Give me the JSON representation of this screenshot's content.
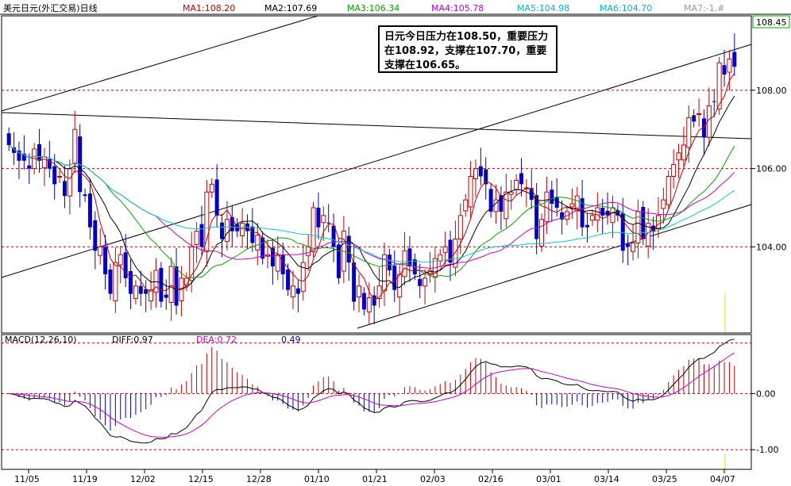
{
  "title": "美元日元(外汇交易)日线",
  "ma_labels": [
    {
      "text": "MA1:108.20",
      "color": "#cc0000"
    },
    {
      "text": "MA2:107.69",
      "color": "#000000"
    },
    {
      "text": "MA3:106.34",
      "color": "#00aa00"
    },
    {
      "text": "MA4:105.78",
      "color": "#cc00cc"
    },
    {
      "text": "MA5:104.98",
      "color": "#00cccc"
    },
    {
      "text": "MA6:104.70",
      "color": "#00cccc"
    },
    {
      "text": "MA7:-1.#",
      "color": "#999999"
    }
  ],
  "annotation": "日元今日压力在108.50，重要压力在108.92，支撑在107.70，重要支撑在106.65。",
  "macd_labels": {
    "name": "MACD(12,26,10)",
    "diff": "DIFF:0.97",
    "dea": "DEA:0.72",
    "macd": "0.49"
  },
  "colors": {
    "up": "#cc0000",
    "down": "#0000cc",
    "grid": "#cc0000"
  },
  "chart_data": {
    "type": "candlestick",
    "price_axis": {
      "ticks": [
        "108.00",
        "106.00",
        "104.00"
      ],
      "current": "108.45",
      "ylim": [
        101.8,
        109.9
      ]
    },
    "macd_axis": {
      "ticks": [
        "0.00",
        "-1.00"
      ],
      "ylim": [
        -1.35,
        1.05
      ]
    },
    "x_ticks": [
      "11/05",
      "11/19",
      "12/02",
      "12/15",
      "12/28",
      "01/10",
      "01/21",
      "02/03",
      "02/16",
      "03/01",
      "03/14",
      "03/25",
      "04/07"
    ],
    "close": [
      106.6,
      106.4,
      106.2,
      106.2,
      106.0,
      106.5,
      106.2,
      106.3,
      106.0,
      105.6,
      105.8,
      105.3,
      106.0,
      107.0,
      105.4,
      105.3,
      104.5,
      103.9,
      104.0,
      103.3,
      102.8,
      103.6,
      103.8,
      103.2,
      102.8,
      103.0,
      102.8,
      102.8,
      102.9,
      103.4,
      102.6,
      102.7,
      103.5,
      102.5,
      103.2,
      103.2,
      104.0,
      104.4,
      104.0,
      105.4,
      105.6,
      104.8,
      104.2,
      104.7,
      104.4,
      104.4,
      104.6,
      104.4,
      104.1,
      104.3,
      103.7,
      103.8,
      103.5,
      103.8,
      103.3,
      102.9,
      103.0,
      102.8,
      103.6,
      104.0,
      105.0,
      104.5,
      104.8,
      104.6,
      104.0,
      103.2,
      104.4,
      103.6,
      102.6,
      103.0,
      102.4,
      102.7,
      102.5,
      103.0,
      103.8,
      103.4,
      102.9,
      103.3,
      103.9,
      103.5,
      103.3,
      103.0,
      103.2,
      103.4,
      103.7,
      103.8,
      104.0,
      103.6,
      104.2,
      104.8,
      105.2,
      105.8,
      106.0,
      105.8,
      105.6,
      104.9,
      105.2,
      104.9,
      105.4,
      105.4,
      105.7,
      105.6,
      105.5,
      105.2,
      104.2,
      104.7,
      105.4,
      105.1,
      105.0,
      104.7,
      104.9,
      105.1,
      105.3,
      104.5,
      104.5,
      104.8,
      105.0,
      104.8,
      104.8,
      105.0,
      104.8,
      103.9,
      104.0,
      104.1,
      104.9,
      104.2,
      104.6,
      104.4,
      104.8,
      105.2,
      105.8,
      106.1,
      106.4,
      106.6,
      107.3,
      107.2,
      107.4,
      106.8,
      107.6,
      107.7,
      108.7,
      108.4,
      108.8,
      108.6
    ],
    "macd": {
      "diff_last": 0.97,
      "dea_last": 0.72,
      "macd_last": 0.49
    }
  }
}
